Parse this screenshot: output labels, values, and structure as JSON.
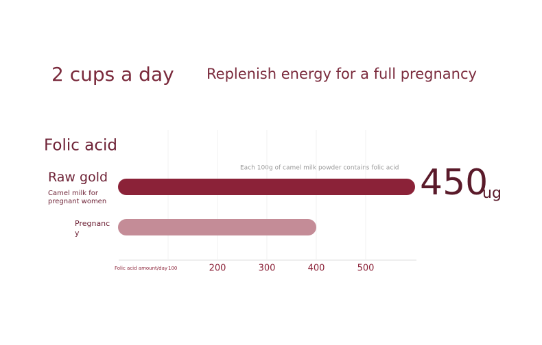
{
  "chart_data": {
    "type": "bar",
    "orientation": "horizontal",
    "headline": "2 cups a day",
    "subtitle": "Replenish energy for a full pregnancy",
    "title": "Folic acid",
    "note": "Each 100g of camel milk powder contains folic acid",
    "highlight_value": "450",
    "highlight_unit": "ug",
    "categories": [
      "Raw gold",
      "Pregnancy"
    ],
    "category_notes": [
      "Camel milk for pregnant women",
      null
    ],
    "series": [
      {
        "values": [
          600,
          400
        ],
        "colors": [
          "#8b2238",
          "#c48c97"
        ]
      }
    ],
    "x_label": "Folic acid amount/day",
    "xlim": [
      0,
      600
    ],
    "xticks": [
      100,
      200,
      300,
      400,
      500
    ],
    "grid": true
  }
}
